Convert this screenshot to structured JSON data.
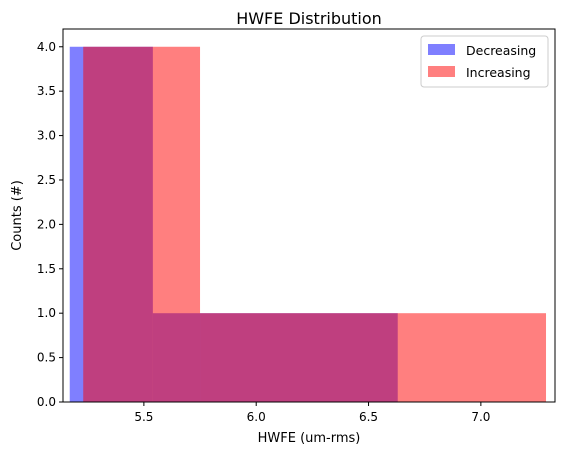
{
  "chart_data": {
    "type": "histogram",
    "title": "HWFE Distribution",
    "xlabel": "HWFE (um-rms)",
    "ylabel": "Counts (#)",
    "xlim": [
      5.14,
      7.33
    ],
    "ylim": [
      0.0,
      4.2
    ],
    "xticks": [
      5.5,
      6.0,
      6.5,
      7.0
    ],
    "xtick_labels": [
      "5.5",
      "6.0",
      "6.5",
      "7.0"
    ],
    "yticks": [
      0.0,
      0.5,
      1.0,
      1.5,
      2.0,
      2.5,
      3.0,
      3.5,
      4.0
    ],
    "ytick_labels": [
      "0.0",
      "0.5",
      "1.0",
      "1.5",
      "2.0",
      "2.5",
      "3.0",
      "3.5",
      "4.0"
    ],
    "grid": false,
    "legend_position": "top-right",
    "series": [
      {
        "name": "Decreasing",
        "color": "#0000ff",
        "alpha": 0.5,
        "bins": [
          {
            "x0": 5.17,
            "x1": 5.54,
            "count": 4
          },
          {
            "x0": 5.54,
            "x1": 6.63,
            "count": 1
          }
        ]
      },
      {
        "name": "Increasing",
        "color": "#ff0000",
        "alpha": 0.5,
        "bins": [
          {
            "x0": 5.23,
            "x1": 5.75,
            "count": 4
          },
          {
            "x0": 5.75,
            "x1": 7.29,
            "count": 1
          }
        ]
      }
    ]
  }
}
